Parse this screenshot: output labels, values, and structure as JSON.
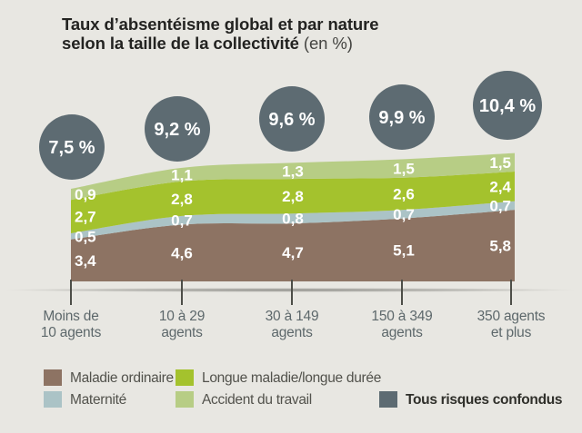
{
  "title": {
    "line1": "Taux d’absentéisme global et par nature",
    "line2_bold": "selon la taille de la collectivité",
    "line2_note": "(en %)"
  },
  "chart_data": {
    "type": "area",
    "stacked": true,
    "title": "Taux d’absentéisme global et par nature selon la taille de la collectivité (en %)",
    "unit": "%",
    "decimal_separator": ",",
    "legend_position": "bottom",
    "grid": false,
    "ylim": [
      0,
      11
    ],
    "categories": [
      "Moins de\n10 agents",
      "10 à 29\nagents",
      "30 à 149\nagents",
      "150 à 349\nagents",
      "350 agents\net plus"
    ],
    "series": [
      {
        "name": "Maladie ordinaire",
        "color": "#8d7363",
        "values": [
          3.4,
          4.6,
          4.7,
          5.1,
          5.8
        ]
      },
      {
        "name": "Maternité",
        "color": "#abc3c6",
        "values": [
          0.5,
          0.7,
          0.8,
          0.7,
          0.7
        ]
      },
      {
        "name": "Longue maladie/longue durée",
        "color": "#a4c22d",
        "values": [
          2.7,
          2.8,
          2.8,
          2.6,
          2.4
        ]
      },
      {
        "name": "Accident du travail",
        "color": "#b7cd85",
        "values": [
          0.9,
          1.1,
          1.3,
          1.5,
          1.5
        ]
      }
    ],
    "totals": {
      "name": "Tous risques confondus",
      "color": "#5d6b72",
      "values": [
        7.5,
        9.2,
        9.6,
        9.9,
        10.4
      ]
    },
    "value_label_color": "#ffffff"
  },
  "legend": {
    "items": [
      {
        "label": "Maladie ordinaire",
        "color": "#8d7363",
        "bold": false
      },
      {
        "label": "Maternité",
        "color": "#abc3c6",
        "bold": false
      },
      {
        "label": "Longue maladie/longue durée",
        "color": "#a4c22d",
        "bold": false
      },
      {
        "label": "Accident du travail",
        "color": "#b7cd85",
        "bold": false
      },
      {
        "label": "Tous risques confondus",
        "color": "#5d6b72",
        "bold": true
      }
    ]
  }
}
